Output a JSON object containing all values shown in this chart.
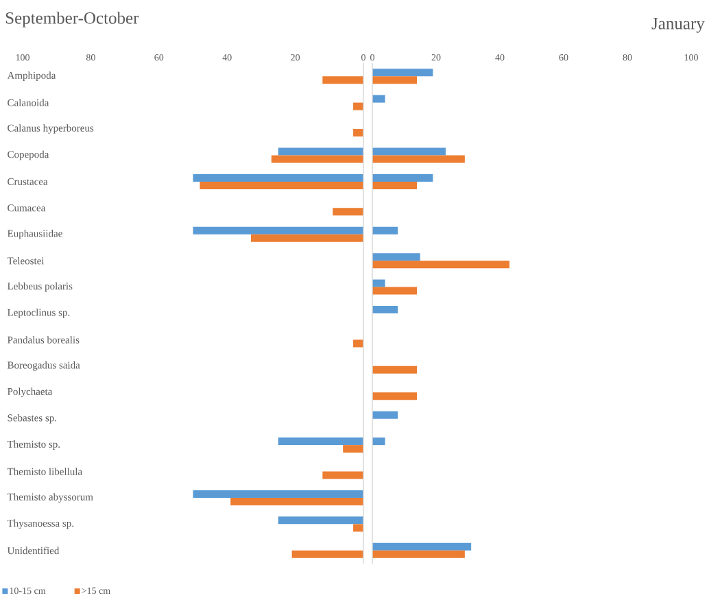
{
  "chart_data": [
    {
      "type": "bar",
      "orientation": "horizontal",
      "title": "September-October",
      "legend": "bottom left",
      "categories": [
        "Amphipoda",
        "Calanoida",
        "Calanus hyperboreus",
        "Copepoda",
        "Crustacea",
        "Cumacea",
        "Euphausiidae",
        "Teleostei",
        "Lebbeus polaris",
        "Leptoclinus sp.",
        "Pandalus borealis",
        "Boreogadus saida",
        "Polychaeta",
        "Sebastes sp.",
        "Themisto sp.",
        "Themisto libellula",
        "Themisto abyssorum",
        "Thysanoessa sp.",
        "Unidentified"
      ],
      "xlim": [
        100,
        0
      ],
      "xticks": [
        100,
        80,
        60,
        40,
        20,
        0
      ],
      "series": [
        {
          "name": "10-15 cm",
          "color": "#5b9bd5",
          "values": [
            null,
            null,
            null,
            25,
            50,
            null,
            50,
            null,
            null,
            null,
            null,
            null,
            null,
            null,
            25,
            null,
            50,
            25,
            null
          ]
        },
        {
          "name": ">15 cm",
          "color": "#ed7d31",
          "values": [
            12,
            3,
            3,
            27,
            48,
            9,
            33,
            null,
            null,
            null,
            3,
            null,
            null,
            null,
            6,
            12,
            39,
            3,
            21
          ]
        }
      ]
    },
    {
      "type": "bar",
      "orientation": "horizontal",
      "title": "January",
      "categories": [
        null,
        null,
        null,
        null,
        null,
        null,
        null,
        null,
        null,
        null,
        null,
        null,
        null,
        null,
        null,
        null,
        null,
        null,
        null
      ],
      "xlim": [
        0,
        100
      ],
      "xticks": [
        0,
        20,
        40,
        60,
        80,
        100
      ],
      "series": [
        {
          "color": "#5b9bd5",
          "values": [
            19,
            4,
            null,
            23,
            19,
            null,
            8,
            15,
            4,
            8,
            null,
            null,
            null,
            8,
            4,
            null,
            null,
            null,
            31
          ]
        },
        {
          "color": "#ed7d31",
          "values": [
            14,
            null,
            null,
            29,
            14,
            null,
            null,
            43,
            14,
            null,
            null,
            14,
            14,
            null,
            null,
            null,
            null,
            null,
            29
          ]
        }
      ]
    }
  ]
}
